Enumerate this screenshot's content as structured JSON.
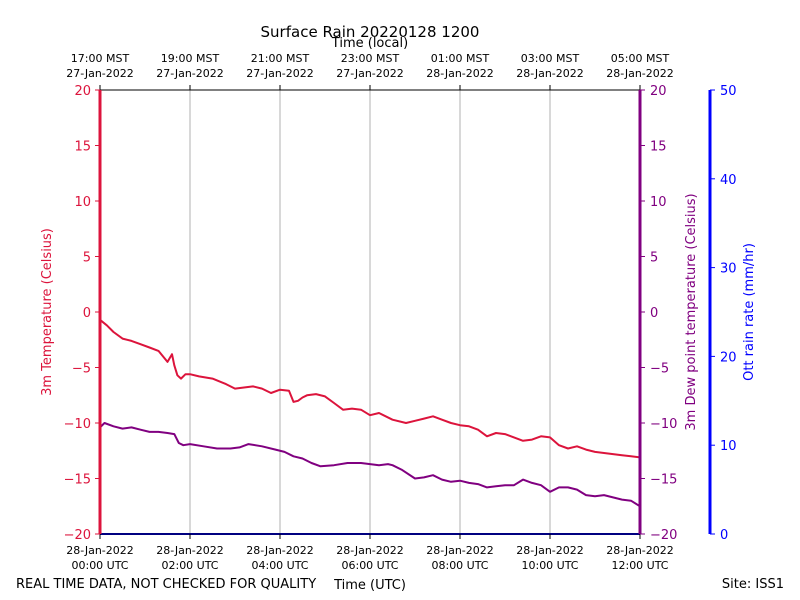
{
  "chart_data": {
    "type": "line",
    "title": "Surface Rain 20220128 1200",
    "top_axis_label": "Time (local)",
    "xlabel": "Time (UTC)",
    "footer_left": "REAL TIME DATA, NOT CHECKED FOR QUALITY",
    "footer_right": "Site: ISS1",
    "x_range_hours_utc": [
      0,
      12
    ],
    "bottom_ticks": [
      {
        "hour": 0,
        "line1": "28-Jan-2022",
        "line2": "00:00 UTC"
      },
      {
        "hour": 2,
        "line1": "28-Jan-2022",
        "line2": "02:00 UTC"
      },
      {
        "hour": 4,
        "line1": "28-Jan-2022",
        "line2": "04:00 UTC"
      },
      {
        "hour": 6,
        "line1": "28-Jan-2022",
        "line2": "06:00 UTC"
      },
      {
        "hour": 8,
        "line1": "28-Jan-2022",
        "line2": "08:00 UTC"
      },
      {
        "hour": 10,
        "line1": "28-Jan-2022",
        "line2": "10:00 UTC"
      },
      {
        "hour": 12,
        "line1": "28-Jan-2022",
        "line2": "12:00 UTC"
      }
    ],
    "top_ticks": [
      {
        "hour": 0,
        "line1": "17:00 MST",
        "line2": "27-Jan-2022"
      },
      {
        "hour": 2,
        "line1": "19:00 MST",
        "line2": "27-Jan-2022"
      },
      {
        "hour": 4,
        "line1": "21:00 MST",
        "line2": "27-Jan-2022"
      },
      {
        "hour": 6,
        "line1": "23:00 MST",
        "line2": "27-Jan-2022"
      },
      {
        "hour": 8,
        "line1": "01:00 MST",
        "line2": "28-Jan-2022"
      },
      {
        "hour": 10,
        "line1": "03:00 MST",
        "line2": "28-Jan-2022"
      },
      {
        "hour": 12,
        "line1": "05:00 MST",
        "line2": "28-Jan-2022"
      }
    ],
    "gridlines_x": true,
    "axes": {
      "temperature": {
        "label": "3m Temperature (Celsius)",
        "color": "#dc143c",
        "ylim": [
          -20,
          20
        ],
        "ticks": [
          -20,
          -15,
          -10,
          -5,
          0,
          5,
          10,
          15,
          20
        ]
      },
      "dewpoint": {
        "label": "3m Dew point temperature (Celsius)",
        "color": "#800080",
        "ylim": [
          -20,
          20
        ],
        "ticks": [
          -20,
          -15,
          -10,
          -5,
          0,
          5,
          10,
          15,
          20
        ]
      },
      "rain": {
        "label": "Ott rain rate (mm/hr)",
        "color": "#0000ff",
        "ylim": [
          0,
          50
        ],
        "ticks": [
          0,
          10,
          20,
          30,
          40,
          50
        ]
      }
    },
    "series": [
      {
        "name": "3m Temperature",
        "color": "#dc143c",
        "axis": "temperature",
        "x": [
          0,
          0.15,
          0.3,
          0.5,
          0.7,
          0.9,
          1.1,
          1.3,
          1.5,
          1.6,
          1.65,
          1.72,
          1.8,
          1.9,
          2.0,
          2.2,
          2.5,
          2.8,
          3.0,
          3.2,
          3.4,
          3.6,
          3.8,
          4.0,
          4.2,
          4.3,
          4.4,
          4.5,
          4.6,
          4.8,
          5.0,
          5.2,
          5.4,
          5.6,
          5.8,
          6.0,
          6.2,
          6.5,
          6.8,
          7.0,
          7.2,
          7.4,
          7.6,
          7.8,
          8.0,
          8.2,
          8.4,
          8.6,
          8.8,
          9.0,
          9.2,
          9.4,
          9.6,
          9.8,
          10.0,
          10.2,
          10.4,
          10.6,
          10.8,
          11.0,
          11.2,
          11.4,
          11.6,
          11.8,
          12.0
        ],
        "values": [
          -0.7,
          -1.2,
          -1.8,
          -2.4,
          -2.6,
          -2.9,
          -3.2,
          -3.5,
          -4.5,
          -3.8,
          -4.8,
          -5.7,
          -6.0,
          -5.6,
          -5.6,
          -5.8,
          -6.0,
          -6.5,
          -6.9,
          -6.8,
          -6.7,
          -6.9,
          -7.3,
          -7.0,
          -7.1,
          -8.1,
          -8.0,
          -7.7,
          -7.5,
          -7.4,
          -7.6,
          -8.2,
          -8.8,
          -8.7,
          -8.8,
          -9.3,
          -9.1,
          -9.7,
          -10.0,
          -9.8,
          -9.6,
          -9.4,
          -9.7,
          -10.0,
          -10.2,
          -10.3,
          -10.6,
          -11.2,
          -10.9,
          -11.0,
          -11.3,
          -11.6,
          -11.5,
          -11.2,
          -11.3,
          -12.0,
          -12.3,
          -12.1,
          -12.4,
          -12.6,
          -12.7,
          -12.8,
          -12.9,
          -13.0,
          -13.1
        ]
      },
      {
        "name": "3m Dew point temperature",
        "color": "#800080",
        "axis": "dewpoint",
        "x": [
          0,
          0.1,
          0.3,
          0.5,
          0.7,
          0.9,
          1.1,
          1.3,
          1.5,
          1.65,
          1.75,
          1.85,
          2.0,
          2.3,
          2.6,
          2.9,
          3.1,
          3.3,
          3.6,
          3.9,
          4.1,
          4.3,
          4.5,
          4.7,
          4.9,
          5.2,
          5.5,
          5.8,
          6.0,
          6.2,
          6.4,
          6.5,
          6.7,
          7.0,
          7.2,
          7.4,
          7.6,
          7.8,
          8.0,
          8.2,
          8.4,
          8.6,
          8.8,
          9.0,
          9.2,
          9.4,
          9.6,
          9.8,
          10.0,
          10.2,
          10.4,
          10.6,
          10.8,
          11.0,
          11.2,
          11.4,
          11.6,
          11.8,
          12.0
        ],
        "values": [
          -10.4,
          -10.0,
          -10.3,
          -10.5,
          -10.4,
          -10.6,
          -10.8,
          -10.8,
          -10.9,
          -11.0,
          -11.8,
          -12.0,
          -11.9,
          -12.1,
          -12.3,
          -12.3,
          -12.2,
          -11.9,
          -12.1,
          -12.4,
          -12.6,
          -13.0,
          -13.2,
          -13.6,
          -13.9,
          -13.8,
          -13.6,
          -13.6,
          -13.7,
          -13.8,
          -13.7,
          -13.8,
          -14.2,
          -15.0,
          -14.9,
          -14.7,
          -15.1,
          -15.3,
          -15.2,
          -15.4,
          -15.5,
          -15.8,
          -15.7,
          -15.6,
          -15.6,
          -15.1,
          -15.4,
          -15.6,
          -16.2,
          -15.8,
          -15.8,
          -16.0,
          -16.5,
          -16.6,
          -16.5,
          -16.7,
          -16.9,
          -17.0,
          -17.5
        ]
      }
    ]
  }
}
